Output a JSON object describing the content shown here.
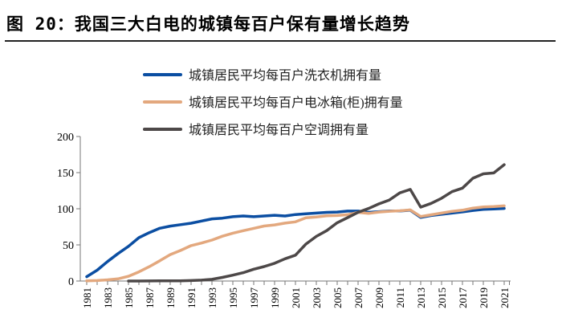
{
  "title": "图 20：我国三大白电的城镇每百户保有量增长趋势",
  "chart_data": {
    "type": "line",
    "title": "",
    "xlabel": "",
    "ylabel": "",
    "ylim": [
      0,
      200
    ],
    "yticks": [
      0,
      50,
      100,
      150,
      200
    ],
    "grid": false,
    "legend_placement": "top-left",
    "x": [
      1981,
      1982,
      1983,
      1984,
      1985,
      1986,
      1987,
      1988,
      1989,
      1990,
      1991,
      1992,
      1993,
      1994,
      1995,
      1996,
      1997,
      1998,
      1999,
      2000,
      2001,
      2002,
      2003,
      2004,
      2005,
      2006,
      2007,
      2008,
      2009,
      2010,
      2011,
      2012,
      2013,
      2014,
      2015,
      2016,
      2017,
      2018,
      2019,
      2020,
      2021
    ],
    "xtick_labels": [
      "1981",
      "1983",
      "1985",
      "1987",
      "1989",
      "1991",
      "1993",
      "1995",
      "1997",
      "1999",
      "2001",
      "2003",
      "2005",
      "2007",
      "2009",
      "2011",
      "2013",
      "2015",
      "2017",
      "2019",
      "2021"
    ],
    "series": [
      {
        "name": "城镇居民平均每百户洗衣机拥有量",
        "color": "#0b4ea2",
        "values": [
          6,
          15,
          27,
          38,
          48,
          60,
          67,
          73,
          76,
          78,
          80,
          83,
          86,
          87,
          89,
          90,
          89,
          90,
          91,
          90,
          92,
          93,
          94,
          95,
          95.5,
          96.8,
          96.8,
          95,
          96,
          96.9,
          97,
          98,
          88,
          90.7,
          92.3,
          94,
          95.7,
          97.7,
          99.2,
          99.7,
          100.5
        ]
      },
      {
        "name": "城镇居民平均每百户电冰箱(柜)拥有量",
        "color": "#e3a87e",
        "values": [
          0.2,
          0.7,
          1.7,
          3,
          6.6,
          12.7,
          19.9,
          28,
          36.5,
          42.3,
          49,
          52.6,
          56.7,
          62,
          66.2,
          69.7,
          72.9,
          76.1,
          77.7,
          80.1,
          81.9,
          87.4,
          88.7,
          90.2,
          90.7,
          91.8,
          95,
          93.6,
          95.4,
          96.6,
          97.2,
          98.5,
          89.2,
          91.7,
          94,
          96.4,
          98,
          100.9,
          102.5,
          103,
          104
        ]
      },
      {
        "name": "城镇居民平均每百户空调拥有量",
        "color": "#4d4848",
        "values": [
          null,
          null,
          null,
          null,
          0,
          0,
          0.1,
          0.2,
          0.2,
          0.3,
          0.7,
          1.2,
          2.3,
          5,
          8.1,
          11.6,
          16.3,
          20,
          24.5,
          30.8,
          35.8,
          51.1,
          61.8,
          69.8,
          80.7,
          87.8,
          95.1,
          100.3,
          106.8,
          112.1,
          122,
          126.8,
          102.2,
          107.4,
          114.6,
          123.7,
          128.6,
          142.2,
          148.3,
          149.6,
          161
        ]
      }
    ]
  }
}
